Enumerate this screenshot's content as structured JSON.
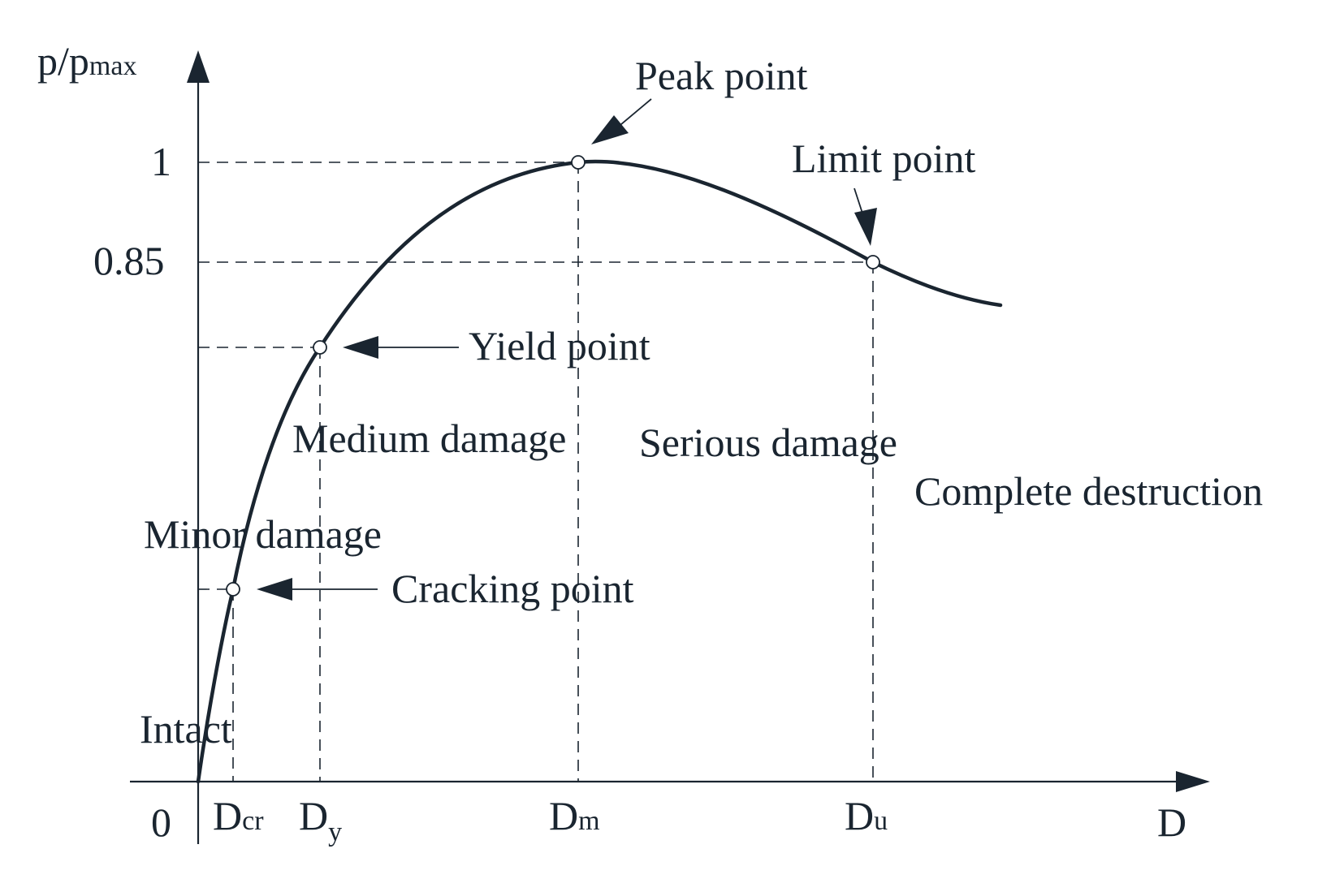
{
  "axes": {
    "y_label_main": "p/p",
    "y_label_sub": "max",
    "x_label": "D",
    "origin_label": "0"
  },
  "y_ticks": {
    "one": "1",
    "limit": "0.85"
  },
  "x_ticks": [
    {
      "main": "D",
      "sub": "cr"
    },
    {
      "main": "D",
      "sub": "y"
    },
    {
      "main": "D",
      "sub": "m"
    },
    {
      "main": "D",
      "sub": "u"
    }
  ],
  "points": {
    "peak": "Peak point",
    "limit": "Limit point",
    "yield": "Yield point",
    "cracking": "Cracking point"
  },
  "regions": {
    "intact": "Intact",
    "minor": "Minor damage",
    "medium": "Medium damage",
    "serious": "Serious damage",
    "complete": "Complete destruction"
  },
  "colors": {
    "ink": "#1a2530",
    "background": "#ffffff"
  }
}
